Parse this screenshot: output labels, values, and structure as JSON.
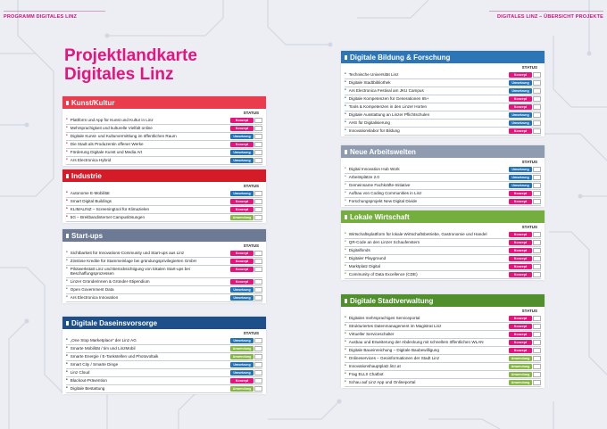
{
  "header": {
    "left": "PROGRAMM DIGITALES LINZ",
    "right": "DIGITALES LINZ – ÜBERSICHT PROJEKTE"
  },
  "title": {
    "line1": "Projektlandkarte",
    "line2": "Digitales Linz"
  },
  "colors": {
    "konzept": "#e3167d",
    "umsetzung": "#2473b5",
    "anwendung": "#87b845"
  },
  "sections": {
    "kunst": {
      "title": "Kunst/Kultur",
      "status": "STATUS",
      "color": "#e93c4c",
      "items": [
        {
          "label": "Plattform und App für Kunst und Kultur in Linz",
          "status": "Konzept"
        },
        {
          "label": "Mehrsprachigkeit und kulturelle Vielfalt online",
          "status": "Konzept"
        },
        {
          "label": "Digitale Kunst- und Kulturvermittlung im öffentlichen Raum",
          "status": "Umsetzung"
        },
        {
          "label": "Die Stadt als Produzentin offener Werke",
          "status": "Konzept"
        },
        {
          "label": "Förderung Digitale Kunst und Media Art",
          "status": "Umsetzung"
        },
        {
          "label": "Ars Electronica Hybrid",
          "status": "Umsetzung"
        }
      ]
    },
    "industrie": {
      "title": "Industrie",
      "status": "STATUS",
      "color": "#d41c29",
      "items": [
        {
          "label": "Autonome E-Mobilität",
          "status": "Umsetzung"
        },
        {
          "label": "Smart Digital Buildings",
          "status": "Konzept"
        },
        {
          "label": "KLIMALINZ – Screeningtool für Klimazielen",
          "status": "Konzept"
        },
        {
          "label": "5G – Breitbandinternet Campuslösungen",
          "status": "Anwendung"
        }
      ]
    },
    "startups": {
      "title": "Start-ups",
      "status": "STATUS",
      "color": "#6d7a93",
      "items": [
        {
          "label": "Sichtbarkeit für Innovations-Community und Start-ups aus Linz",
          "status": "Konzept"
        },
        {
          "label": "Zinslose Kredite für Stammeinlage bei gründungsprivilegierten GmbH",
          "status": "Konzept"
        },
        {
          "label": "Pilotwerkstatt Linz und Berücksichtigung von lokalen Start-ups bei Beschaffungsprozessen",
          "status": "Konzept"
        },
        {
          "label": "Linzer Gründerinnen & Gründer-Stipendium",
          "status": "Konzept"
        },
        {
          "label": "Open Government Data",
          "status": "Umsetzung"
        },
        {
          "label": "Ars Electronica Innovation",
          "status": "Umsetzung"
        }
      ]
    },
    "daseinsvorsorge": {
      "title": "Digitale Daseinsvorsorge",
      "status": "STATUS",
      "color": "#1d4f8a",
      "items": [
        {
          "label": "„One Stop Marketplace“ der Linz AG",
          "status": "Umsetzung"
        },
        {
          "label": "Smarte Mobilität / tim und LinzMobil",
          "status": "Anwendung"
        },
        {
          "label": "Smarte Energie / E-Tankstellen und Photovoltaik",
          "status": "Anwendung"
        },
        {
          "label": "Smart City / Smarte Dinge",
          "status": "Umsetzung"
        },
        {
          "label": "Linz Cloud",
          "status": "Umsetzung"
        },
        {
          "label": "Blackout-Prävention",
          "status": "Konzept"
        },
        {
          "label": "Digitale Bestattung",
          "status": "Anwendung"
        }
      ]
    },
    "bildung": {
      "title": "Digitale Bildung & Forschung",
      "status": "STATUS",
      "color": "#2c76b8",
      "items": [
        {
          "label": "Technische Universität Linz",
          "status": "Konzept"
        },
        {
          "label": "Digitale Stadtbibliothek",
          "status": "Umsetzung"
        },
        {
          "label": "Ars Electronica Festival am JKU Campus",
          "status": "Umsetzung"
        },
        {
          "label": "Digitale Kompetenzen für Generationen 65+",
          "status": "Konzept"
        },
        {
          "label": "Tools & Kompetenzen in den Linzer Horten",
          "status": "Konzept"
        },
        {
          "label": "Digitale Ausstattung an Linzer Pflichtschulen",
          "status": "Umsetzung"
        },
        {
          "label": "AHS für Digitalisierung",
          "status": "Umsetzung"
        },
        {
          "label": "Innovationslabor für Bildung",
          "status": "Konzept"
        }
      ]
    },
    "arbeitswelten": {
      "title": "Neue Arbeitswelten",
      "status": "STATUS",
      "color": "#8e9bb0",
      "items": [
        {
          "label": "Digital Innovation Hub Work",
          "status": "Umsetzung"
        },
        {
          "label": "Arbeitsplätze 2.0",
          "status": "Umsetzung"
        },
        {
          "label": "Gemeinsame Fachkräfte-Initiative",
          "status": "Umsetzung"
        },
        {
          "label": "Aufbau von Coding Communities in Linz",
          "status": "Konzept"
        },
        {
          "label": "Forschungsprojekt New Digital Divide",
          "status": "Konzept"
        }
      ]
    },
    "wirtschaft": {
      "title": "Lokale Wirtschaft",
      "status": "STATUS",
      "color": "#74ae3e",
      "items": [
        {
          "label": "Wirtschaftsplattform für lokale Wirtschaftsbetriebe, Gastronomie und Handel",
          "status": "Konzept"
        },
        {
          "label": "QR-Code an den Linzer Schaufenstern",
          "status": "Konzept"
        },
        {
          "label": "Digitalfonds",
          "status": "Konzept"
        },
        {
          "label": "Digitaler Playground",
          "status": "Konzept"
        },
        {
          "label": "Marktplatz Digital",
          "status": "Konzept"
        },
        {
          "label": "Community of Data Excellence (CDE)",
          "status": "Konzept"
        }
      ]
    },
    "stadtverwaltung": {
      "title": "Digitale Stadtverwaltung",
      "status": "STATUS",
      "color": "#4f8f2c",
      "items": [
        {
          "label": "Digitales mehrsprachiges Serviceportal",
          "status": "Konzept"
        },
        {
          "label": "Strukturiertes Datenmanagement im Magistrat Linz",
          "status": "Konzept"
        },
        {
          "label": "Virtueller Serviceschalter",
          "status": "Konzept"
        },
        {
          "label": "Ausbau und Erweiterung der Abdeckung mit schnellem öffentlichen WLAN",
          "status": "Konzept"
        },
        {
          "label": "Digitale Baueinreichung – Digitale Baubewilligung",
          "status": "Konzept"
        },
        {
          "label": "Onlineservices – Geoinformationen der Stadt Linz",
          "status": "Anwendung"
        },
        {
          "label": "Innovationshauptplatz.linz.at",
          "status": "Anwendung"
        },
        {
          "label": "Frag ELLI! Chatbot",
          "status": "Anwendung"
        },
        {
          "label": "Schau auf Linz App und Onlineportal",
          "status": "Anwendung"
        }
      ]
    }
  }
}
